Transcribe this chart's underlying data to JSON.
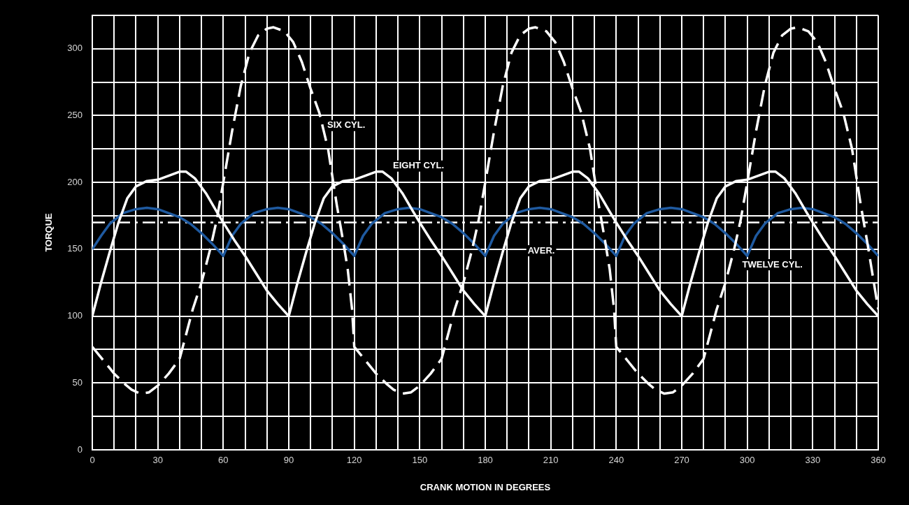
{
  "chart_data": {
    "type": "line",
    "xlabel": "CRANK MOTION IN DEGREES",
    "ylabel": "TORQUE",
    "xlim": [
      0,
      360
    ],
    "xticks": [
      0,
      {
        "value": 10,
        "label": null
      },
      {
        "value": 20,
        "label": null
      },
      30,
      {
        "value": 40,
        "label": null
      },
      {
        "value": 50,
        "label": null
      },
      60,
      {
        "value": 70,
        "label": null
      },
      {
        "value": 80,
        "label": null
      },
      90,
      {
        "value": 100,
        "label": null
      },
      {
        "value": 110,
        "label": null
      },
      120,
      {
        "value": 130,
        "label": null
      },
      {
        "value": 140,
        "label": null
      },
      150,
      {
        "value": 160,
        "label": null
      },
      {
        "value": 170,
        "label": null
      },
      180,
      {
        "value": 190,
        "label": null
      },
      {
        "value": 200,
        "label": null
      },
      210,
      {
        "value": 220,
        "label": null
      },
      {
        "value": 230,
        "label": null
      },
      240,
      {
        "value": 250,
        "label": null
      },
      {
        "value": 260,
        "label": null
      },
      270,
      {
        "value": 280,
        "label": null
      },
      {
        "value": 290,
        "label": null
      },
      300,
      {
        "value": 310,
        "label": null
      },
      {
        "value": 320,
        "label": null
      },
      330,
      {
        "value": 340,
        "label": null
      },
      {
        "value": 350,
        "label": null
      },
      360
    ],
    "ylim": [
      0,
      325
    ],
    "yticks": [
      0,
      {
        "value": 25,
        "label": null
      },
      50,
      {
        "value": 75,
        "label": null
      },
      100,
      {
        "value": 125,
        "label": null
      },
      150,
      {
        "value": 175,
        "label": null
      },
      200,
      {
        "value": 225,
        "label": null
      },
      250,
      {
        "value": 275,
        "label": null
      },
      300,
      {
        "value": 325,
        "label": null
      }
    ],
    "grid": true,
    "legend": false,
    "marker": "none",
    "ref_lines": [
      {
        "axis": "y",
        "value": 170,
        "label": "AVER.",
        "line_style": "dashed",
        "color": "#ffffff"
      }
    ],
    "series": [
      {
        "name": "SIX CYL.",
        "color": "#ffffff",
        "line_style": "dashed",
        "x": [
          0,
          5,
          10,
          15,
          18,
          22,
          26,
          30,
          35,
          40,
          46,
          50,
          54,
          57,
          60,
          64,
          68,
          72,
          76,
          80,
          83,
          88,
          92,
          96,
          100,
          104,
          108,
          112,
          115,
          117,
          119,
          120,
          125,
          130,
          135,
          138,
          142,
          146,
          150,
          155,
          160,
          166,
          170,
          174,
          177,
          180,
          184,
          188,
          192,
          196,
          200,
          203,
          208,
          212,
          216,
          220,
          224,
          228,
          232,
          235,
          237,
          239,
          240,
          245,
          250,
          255,
          258,
          262,
          266,
          270,
          275,
          280,
          286,
          290,
          294,
          297,
          300,
          304,
          308,
          312,
          316,
          320,
          323,
          328,
          332,
          336,
          340,
          344,
          348,
          352,
          355,
          357,
          360
        ],
        "values": [
          77,
          67,
          57,
          49,
          45,
          42,
          43,
          48,
          57,
          68,
          105,
          125,
          150,
          172,
          200,
          238,
          272,
          297,
          310,
          315,
          316,
          313,
          305,
          290,
          270,
          252,
          225,
          183,
          155,
          135,
          105,
          77,
          67,
          57,
          49,
          45,
          42,
          43,
          48,
          57,
          68,
          105,
          125,
          150,
          172,
          200,
          238,
          272,
          297,
          310,
          315,
          316,
          313,
          305,
          290,
          270,
          252,
          225,
          183,
          155,
          135,
          105,
          77,
          67,
          57,
          49,
          45,
          42,
          43,
          48,
          57,
          68,
          105,
          125,
          150,
          172,
          200,
          238,
          272,
          297,
          310,
          315,
          316,
          313,
          305,
          290,
          270,
          252,
          225,
          183,
          155,
          135,
          105
        ]
      },
      {
        "name": "EIGHT CYL.",
        "color": "#ffffff",
        "line_style": "solid",
        "x": [
          0,
          4,
          8,
          12,
          16,
          20,
          25,
          30,
          35,
          40,
          43,
          47,
          52,
          57,
          60,
          65,
          70,
          75,
          80,
          85,
          90,
          94,
          98,
          102,
          106,
          110,
          115,
          120,
          125,
          130,
          133,
          137,
          142,
          147,
          150,
          155,
          160,
          165,
          170,
          175,
          180,
          184,
          188,
          192,
          196,
          200,
          205,
          210,
          215,
          220,
          223,
          227,
          232,
          237,
          240,
          245,
          250,
          255,
          260,
          265,
          270,
          274,
          278,
          282,
          286,
          290,
          295,
          300,
          305,
          310,
          313,
          317,
          322,
          327,
          330,
          335,
          340,
          345,
          350,
          355,
          360
        ],
        "values": [
          100,
          125,
          148,
          170,
          188,
          197,
          201,
          202,
          205,
          208,
          208,
          203,
          192,
          178,
          170,
          157,
          145,
          132,
          119,
          109,
          100,
          125,
          148,
          170,
          188,
          197,
          201,
          202,
          205,
          208,
          208,
          203,
          192,
          178,
          170,
          157,
          145,
          132,
          119,
          109,
          100,
          125,
          148,
          170,
          188,
          197,
          201,
          202,
          205,
          208,
          208,
          203,
          192,
          178,
          170,
          157,
          145,
          132,
          119,
          109,
          100,
          125,
          148,
          170,
          188,
          197,
          201,
          202,
          205,
          208,
          208,
          203,
          192,
          178,
          170,
          157,
          145,
          132,
          119,
          109,
          100
        ]
      },
      {
        "name": "TWELVE CYL.",
        "color": "#1f5aa0",
        "line_style": "solid",
        "x": [
          0,
          4,
          8,
          14,
          20,
          25,
          30,
          35,
          40,
          45,
          50,
          55,
          60,
          64,
          68,
          74,
          80,
          85,
          90,
          95,
          100,
          105,
          110,
          115,
          120,
          124,
          128,
          134,
          140,
          145,
          150,
          155,
          160,
          165,
          170,
          175,
          180,
          184,
          188,
          194,
          200,
          205,
          210,
          215,
          220,
          225,
          230,
          235,
          240,
          244,
          248,
          254,
          260,
          265,
          270,
          275,
          280,
          285,
          290,
          295,
          300,
          304,
          308,
          314,
          320,
          325,
          330,
          335,
          340,
          345,
          350,
          355,
          360
        ],
        "values": [
          150,
          160,
          169,
          177,
          180,
          181,
          180,
          177,
          174,
          169,
          162,
          154,
          145,
          160,
          169,
          177,
          180,
          181,
          180,
          177,
          174,
          169,
          162,
          154,
          145,
          160,
          169,
          177,
          180,
          181,
          180,
          177,
          174,
          169,
          162,
          154,
          145,
          160,
          169,
          177,
          180,
          181,
          180,
          177,
          174,
          169,
          162,
          154,
          145,
          160,
          169,
          177,
          180,
          181,
          180,
          177,
          174,
          169,
          162,
          154,
          145,
          160,
          169,
          177,
          180,
          181,
          180,
          177,
          174,
          169,
          162,
          154,
          145
        ]
      }
    ]
  }
}
